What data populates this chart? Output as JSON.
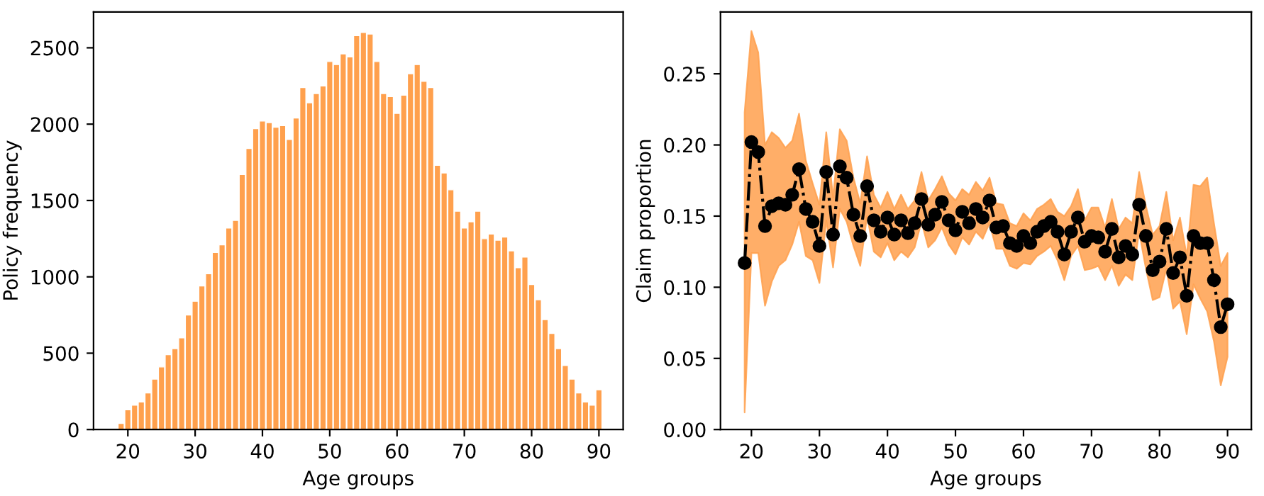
{
  "chart_data": [
    {
      "type": "bar",
      "xlabel": "Age groups",
      "ylabel": "Policy frequency",
      "color": "#ffa04d",
      "x": [
        19,
        20,
        21,
        22,
        23,
        24,
        25,
        26,
        27,
        28,
        29,
        30,
        31,
        32,
        33,
        34,
        35,
        36,
        37,
        38,
        39,
        40,
        41,
        42,
        43,
        44,
        45,
        46,
        47,
        48,
        49,
        50,
        51,
        52,
        53,
        54,
        55,
        56,
        57,
        58,
        59,
        60,
        61,
        62,
        63,
        64,
        65,
        66,
        67,
        68,
        69,
        70,
        71,
        72,
        73,
        74,
        75,
        76,
        77,
        78,
        79,
        80,
        81,
        82,
        83,
        84,
        85,
        86,
        87,
        88,
        89,
        90
      ],
      "values": [
        40,
        130,
        160,
        180,
        240,
        330,
        410,
        490,
        530,
        600,
        750,
        840,
        940,
        1020,
        1160,
        1210,
        1320,
        1370,
        1670,
        1840,
        1970,
        2020,
        2010,
        1980,
        1990,
        1900,
        2040,
        2240,
        2140,
        2200,
        2250,
        2410,
        2390,
        2460,
        2440,
        2580,
        2600,
        2590,
        2410,
        2200,
        2180,
        2070,
        2190,
        2330,
        2390,
        2280,
        2240,
        1730,
        1680,
        1570,
        1430,
        1320,
        1360,
        1430,
        1250,
        1280,
        1240,
        1260,
        1170,
        1060,
        1130,
        950,
        850,
        720,
        630,
        530,
        420,
        330,
        240,
        180,
        160,
        260
      ],
      "xlim": [
        14.9,
        93.6
      ],
      "xticks": [
        20,
        30,
        40,
        50,
        60,
        70,
        80,
        90
      ],
      "ylim": [
        0,
        2735
      ],
      "yticks": [
        0,
        500,
        1000,
        1500,
        2000,
        2500
      ],
      "grid": false,
      "legend": false
    },
    {
      "type": "line",
      "xlabel": "Age groups",
      "ylabel": "Claim proportion",
      "marker": "circle",
      "line_style": "dashdot",
      "grid": false,
      "legend": false,
      "xlim": [
        15.45,
        93.5
      ],
      "xticks": [
        20,
        30,
        40,
        50,
        60,
        70,
        80,
        90
      ],
      "ylim": [
        0,
        0.2935
      ],
      "yticks": [
        {
          "value": 0,
          "label": "0.00"
        },
        {
          "value": 0.05,
          "label": "0.05"
        },
        {
          "value": 0.1,
          "label": "0.10"
        },
        {
          "value": 0.15,
          "label": "0.15"
        },
        {
          "value": 0.2,
          "label": "0.20"
        },
        {
          "value": 0.25,
          "label": "0.25"
        }
      ],
      "color": "#ffa04d",
      "series": [
        {
          "color": "#000000",
          "x": [
            19,
            20,
            21,
            22,
            23,
            24,
            25,
            26,
            27,
            28,
            29,
            30,
            31,
            32,
            33,
            34,
            35,
            36,
            37,
            38,
            39,
            40,
            41,
            42,
            43,
            44,
            45,
            46,
            47,
            48,
            49,
            50,
            51,
            52,
            53,
            54,
            55,
            56,
            57,
            58,
            59,
            60,
            61,
            62,
            63,
            64,
            65,
            66,
            67,
            68,
            69,
            70,
            71,
            72,
            73,
            74,
            75,
            76,
            77,
            78,
            79,
            80,
            81,
            82,
            83,
            84,
            85,
            86,
            87,
            88,
            89,
            90
          ],
          "values": [
            0.117,
            0.202,
            0.195,
            0.143,
            0.157,
            0.159,
            0.158,
            0.165,
            0.183,
            0.155,
            0.146,
            0.129,
            0.181,
            0.137,
            0.185,
            0.177,
            0.151,
            0.136,
            0.171,
            0.147,
            0.139,
            0.149,
            0.137,
            0.147,
            0.138,
            0.145,
            0.162,
            0.144,
            0.151,
            0.16,
            0.147,
            0.14,
            0.153,
            0.145,
            0.155,
            0.149,
            0.161,
            0.142,
            0.143,
            0.131,
            0.129,
            0.136,
            0.131,
            0.139,
            0.143,
            0.146,
            0.139,
            0.123,
            0.139,
            0.149,
            0.132,
            0.136,
            0.135,
            0.125,
            0.141,
            0.121,
            0.129,
            0.123,
            0.158,
            0.136,
            0.112,
            0.118,
            0.141,
            0.11,
            0.121,
            0.094,
            0.136,
            0.131,
            0.131,
            0.105,
            0.072,
            0.088
          ],
          "lower": [
            0.012,
            0.124,
            0.124,
            0.087,
            0.104,
            0.115,
            0.119,
            0.13,
            0.146,
            0.122,
            0.119,
            0.103,
            0.147,
            0.114,
            0.155,
            0.146,
            0.129,
            0.115,
            0.15,
            0.125,
            0.121,
            0.131,
            0.119,
            0.125,
            0.121,
            0.128,
            0.146,
            0.128,
            0.133,
            0.142,
            0.13,
            0.123,
            0.135,
            0.13,
            0.139,
            0.134,
            0.145,
            0.127,
            0.127,
            0.115,
            0.113,
            0.117,
            0.116,
            0.122,
            0.125,
            0.129,
            0.119,
            0.105,
            0.122,
            0.129,
            0.112,
            0.113,
            0.115,
            0.105,
            0.115,
            0.101,
            0.109,
            0.105,
            0.139,
            0.113,
            0.091,
            0.093,
            0.113,
            0.085,
            0.09,
            0.067,
            0.102,
            0.092,
            0.083,
            0.062,
            0.031,
            0.051
          ],
          "upper": [
            0.223,
            0.28,
            0.265,
            0.2,
            0.209,
            0.205,
            0.198,
            0.203,
            0.222,
            0.189,
            0.173,
            0.158,
            0.209,
            0.163,
            0.211,
            0.203,
            0.177,
            0.159,
            0.192,
            0.165,
            0.156,
            0.167,
            0.155,
            0.165,
            0.155,
            0.161,
            0.181,
            0.161,
            0.169,
            0.178,
            0.166,
            0.161,
            0.169,
            0.165,
            0.174,
            0.168,
            0.177,
            0.159,
            0.158,
            0.145,
            0.143,
            0.152,
            0.147,
            0.155,
            0.158,
            0.162,
            0.153,
            0.15,
            0.157,
            0.169,
            0.147,
            0.156,
            0.156,
            0.142,
            0.162,
            0.141,
            0.149,
            0.145,
            0.181,
            0.157,
            0.137,
            0.143,
            0.167,
            0.133,
            0.149,
            0.122,
            0.172,
            0.171,
            0.177,
            0.145,
            0.115,
            0.124
          ]
        }
      ]
    }
  ]
}
